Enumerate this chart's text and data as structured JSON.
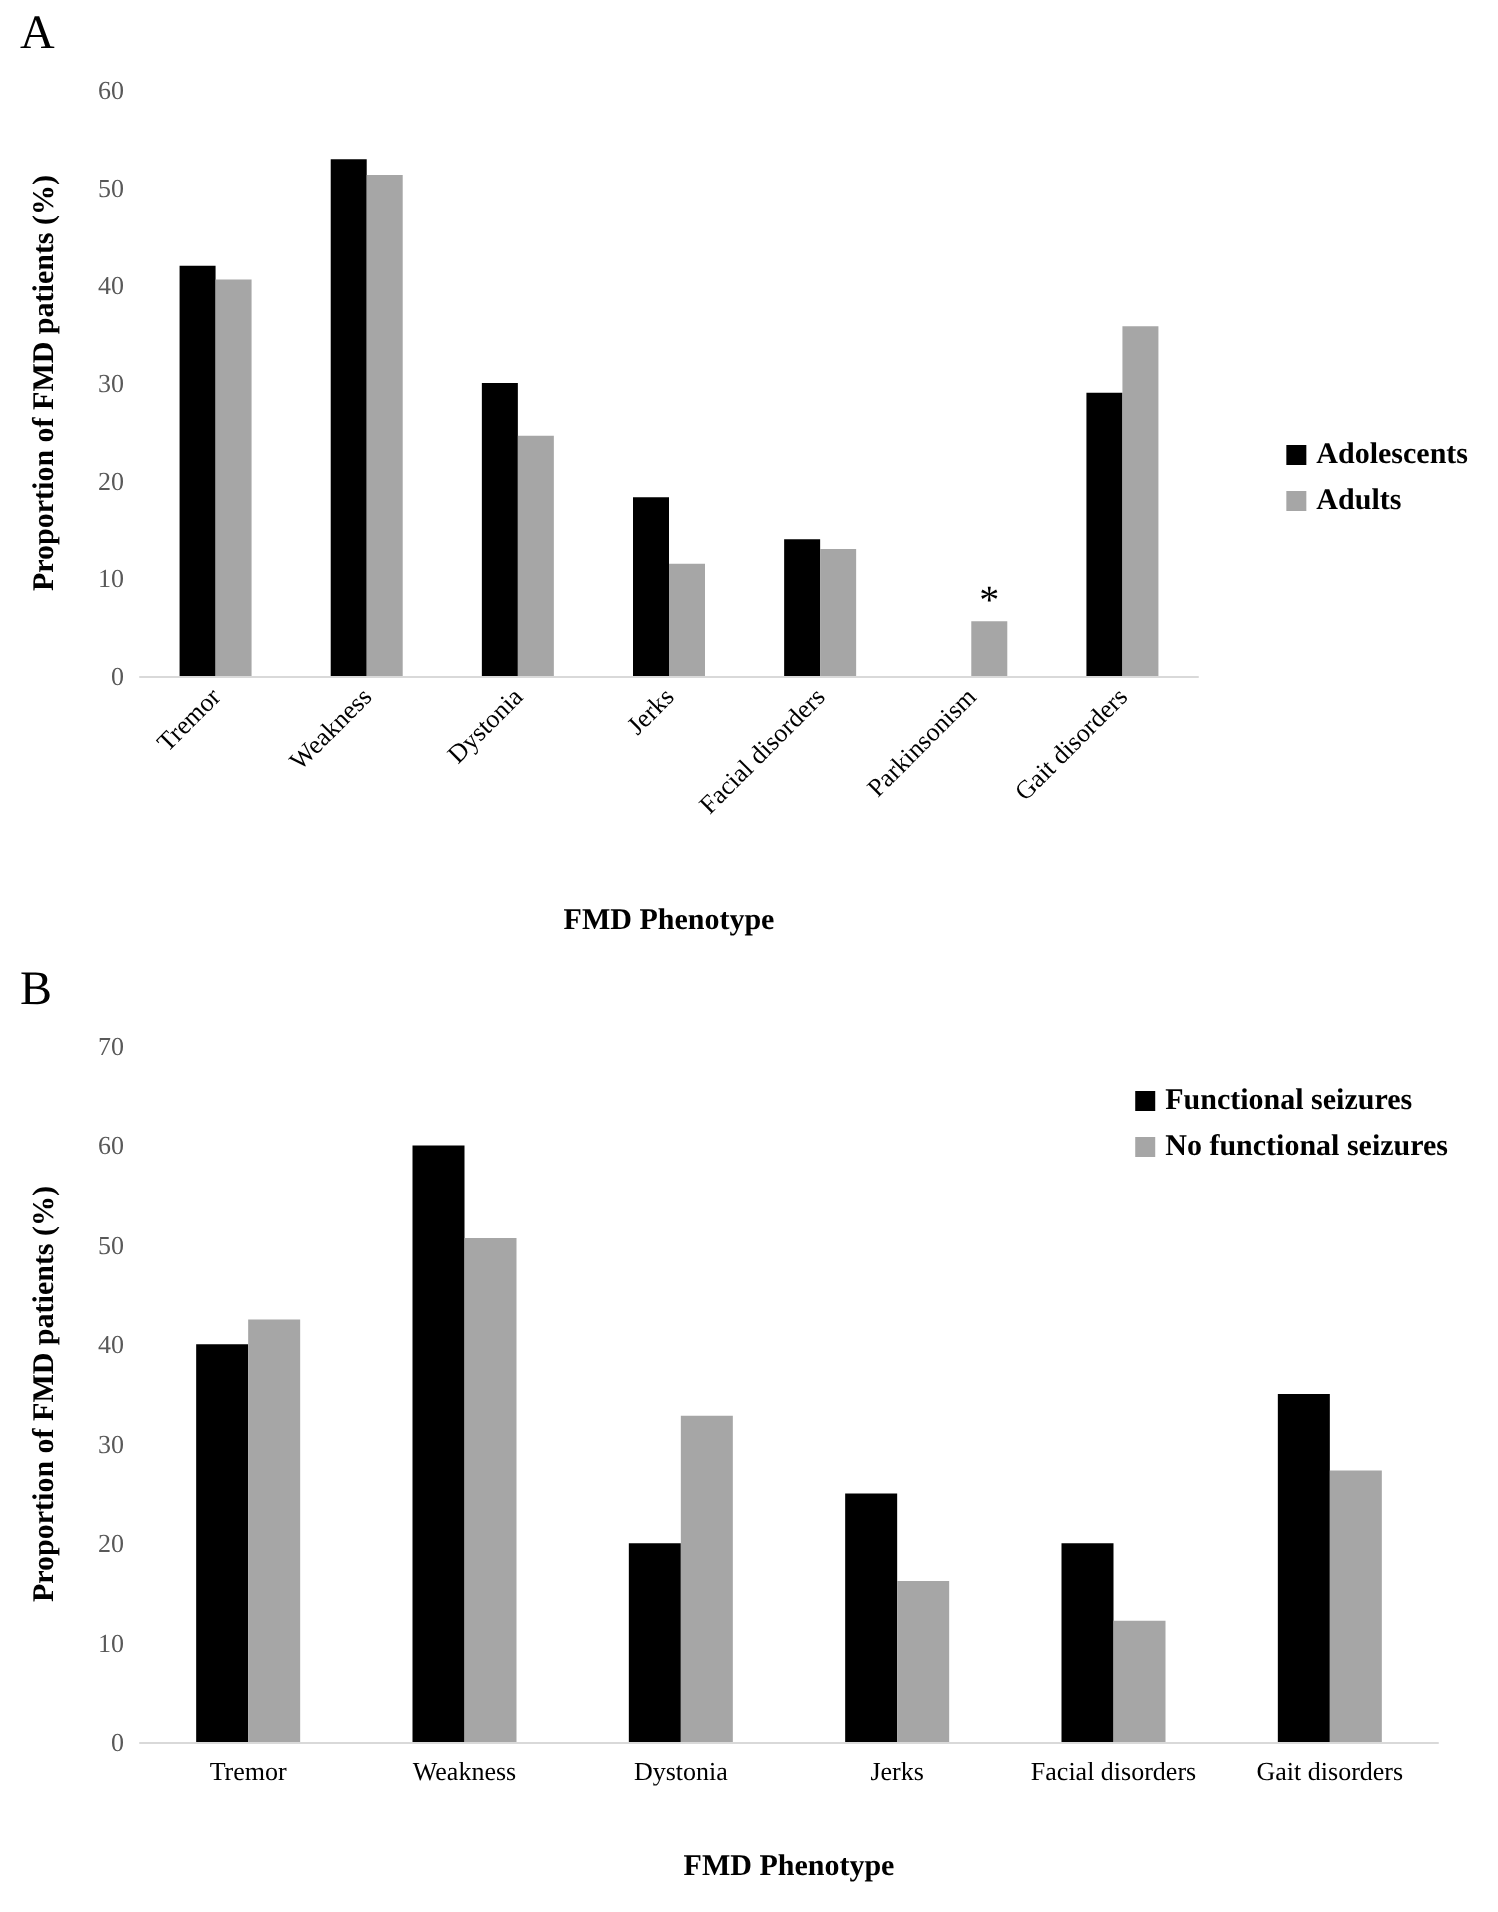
{
  "chart_data": [
    {
      "type": "bar",
      "title": "A",
      "xlabel": "FMD Phenotype",
      "ylabel": "Proportion of FMD patients (%)",
      "categories": [
        "Tremor",
        "Weakness",
        "Dystonia",
        "Jerks",
        "Facial disorders",
        "Parkinsonism",
        "Gait disorders"
      ],
      "series": [
        {
          "name": "Adolescents",
          "color": "#000000",
          "values": [
            42,
            52.9,
            30,
            18.3,
            14,
            null,
            29
          ]
        },
        {
          "name": "Adults",
          "color": "#a6a6a6",
          "values": [
            40.6,
            51.3,
            24.6,
            11.5,
            13,
            5.6,
            35.8
          ]
        }
      ],
      "ylim": [
        0,
        60
      ],
      "yticks": [
        0,
        10,
        20,
        30,
        40,
        50,
        60
      ],
      "grid": false,
      "legend": "right",
      "annotations": [
        {
          "text": "*",
          "x": "Parkinsonism",
          "y": 5.6
        }
      ]
    },
    {
      "type": "bar",
      "title": "B",
      "xlabel": "FMD Phenotype",
      "ylabel": "Proportion of FMD patients (%)",
      "categories": [
        "Tremor",
        "Weakness",
        "Dystonia",
        "Jerks",
        "Facial disorders",
        "Gait disorders"
      ],
      "series": [
        {
          "name": "Functional seizures",
          "color": "#000000",
          "values": [
            40,
            60,
            20,
            25,
            20,
            35
          ]
        },
        {
          "name": "No functional seizures",
          "color": "#a6a6a6",
          "values": [
            42.5,
            50.7,
            32.8,
            16.2,
            12.2,
            27.3
          ]
        }
      ],
      "ylim": [
        0,
        70
      ],
      "yticks": [
        0,
        10,
        20,
        30,
        40,
        50,
        60,
        70
      ],
      "grid": false,
      "legend": "top right"
    }
  ]
}
